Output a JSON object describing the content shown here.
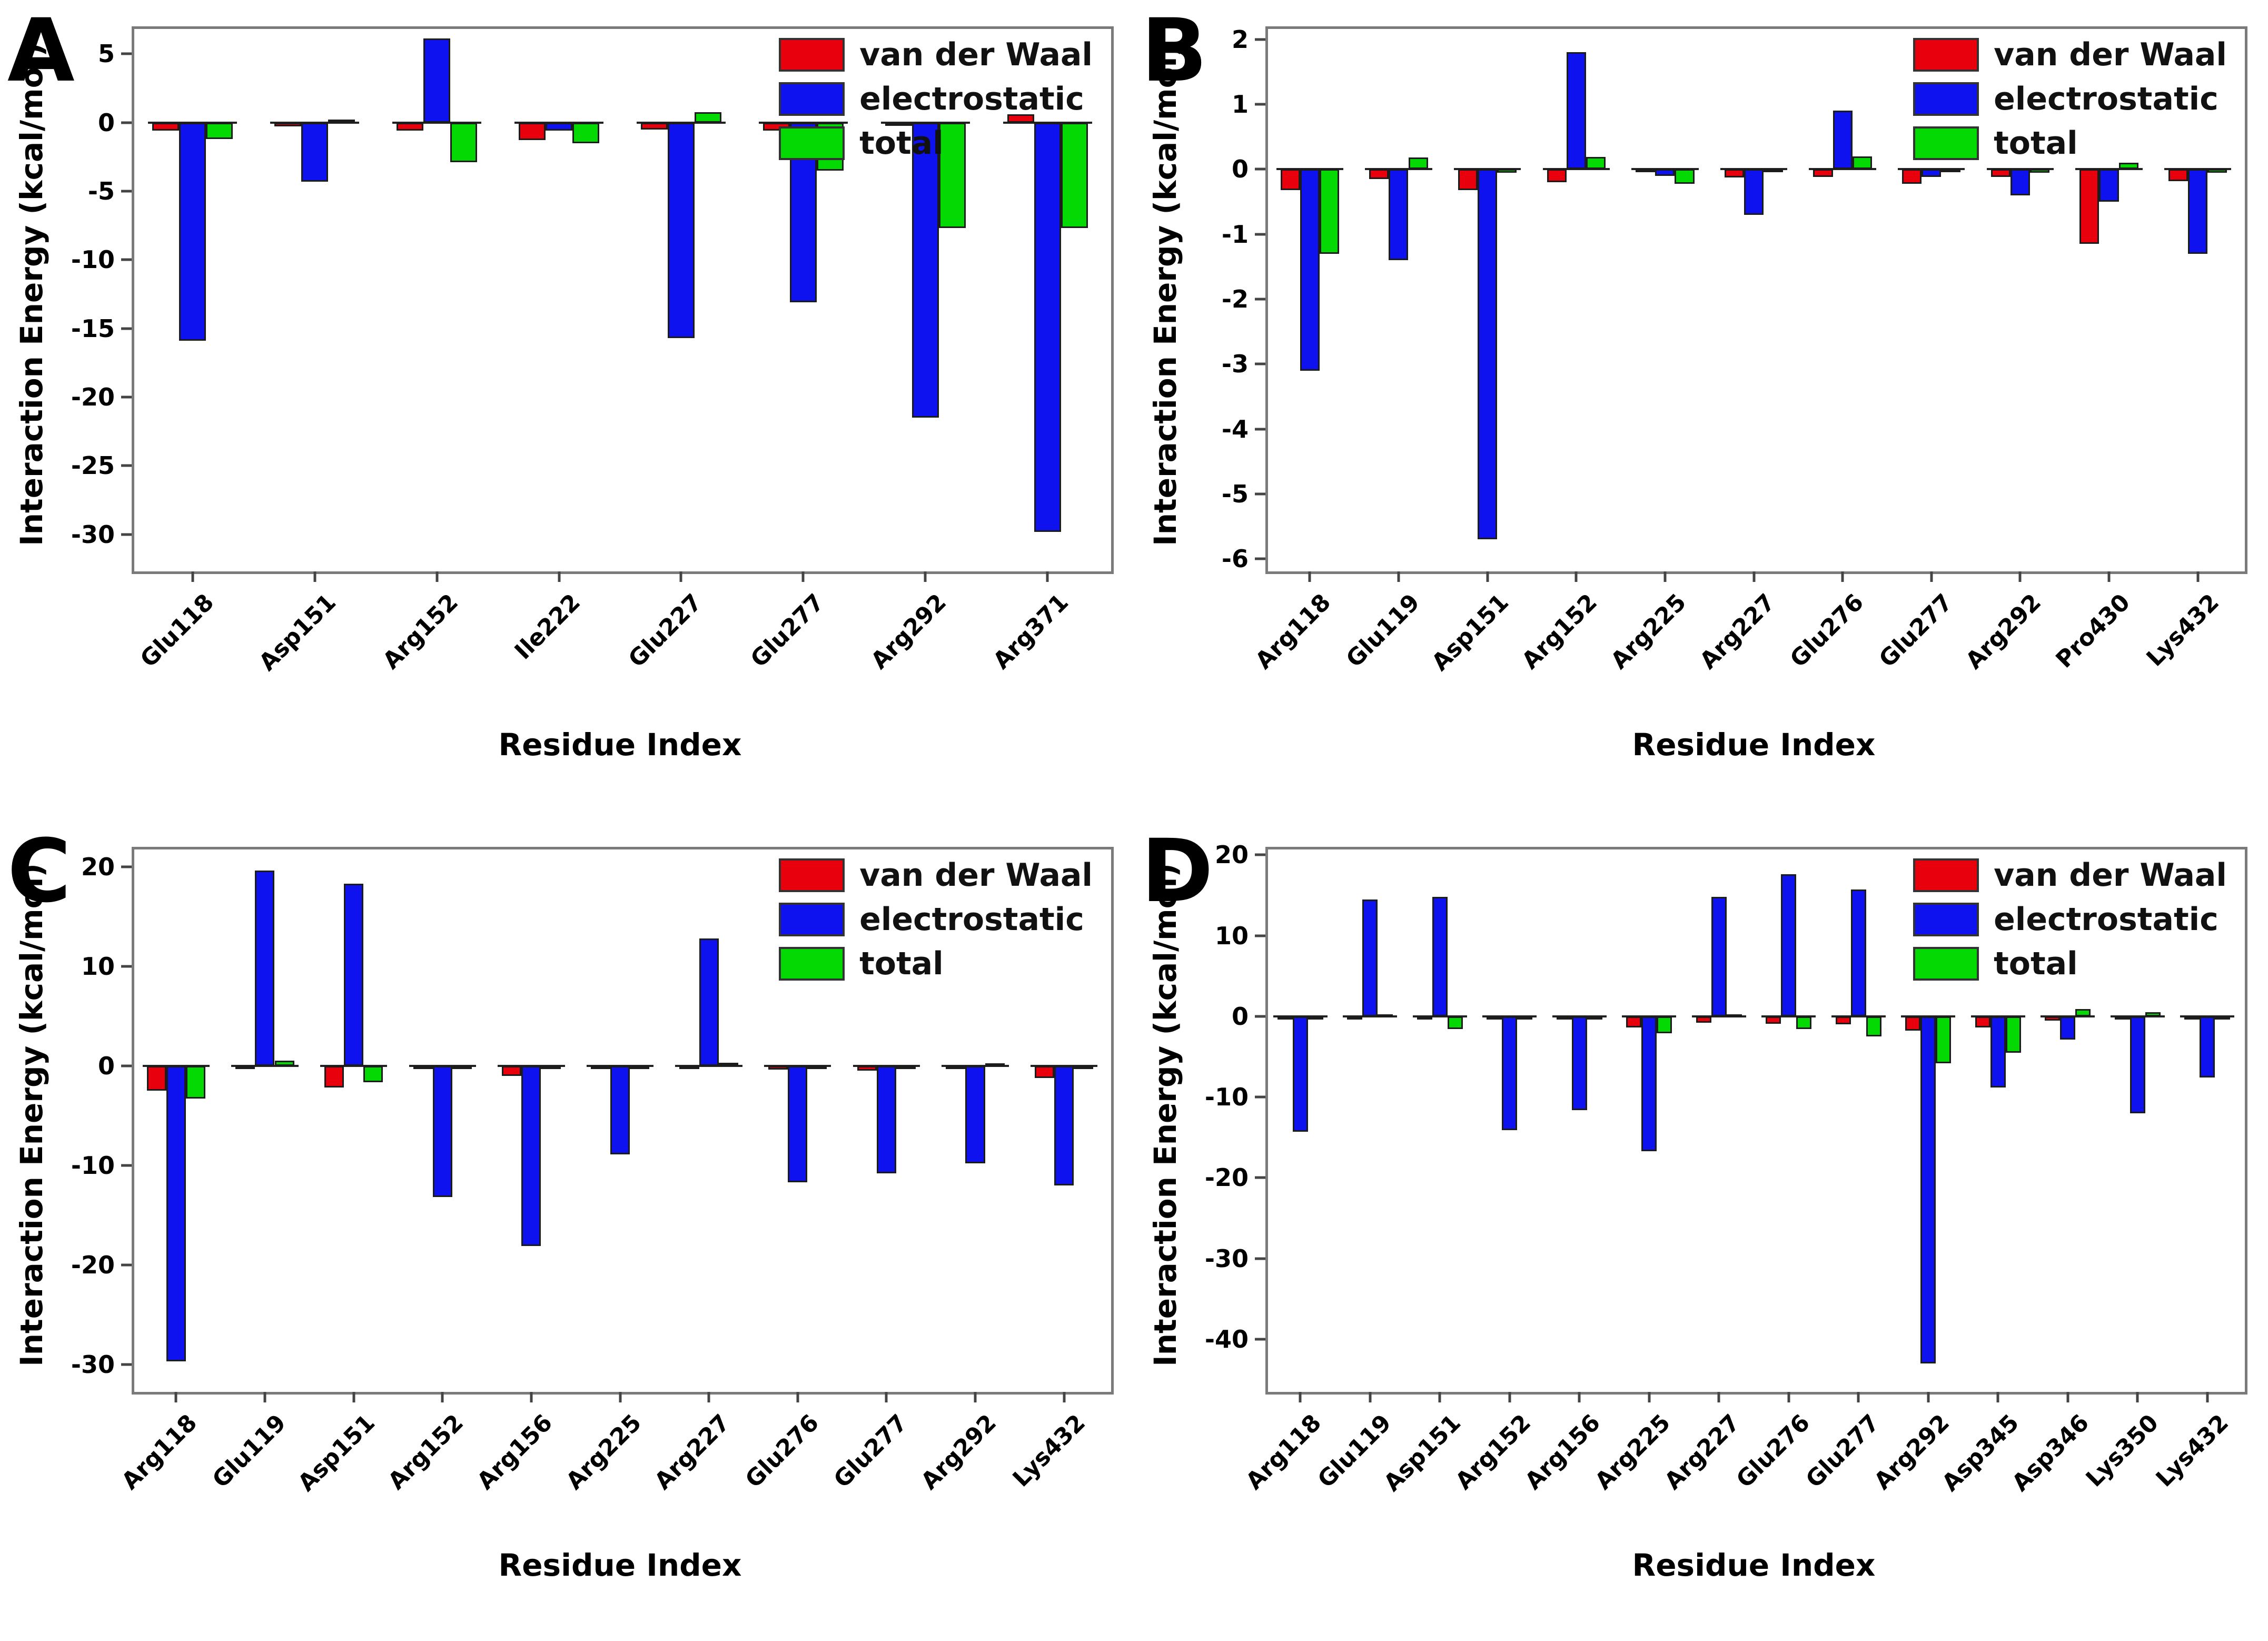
{
  "figure": {
    "ylabel": "Interaction Energy (kcal/mol)",
    "xlabel": "Residue Index",
    "series_colors": {
      "van_der_waal": "#e8000d",
      "electrostatic": "#0d12ee",
      "total": "#04d904"
    },
    "legend_labels": [
      "van der Waal",
      "electrostatic",
      "total"
    ]
  },
  "chart_data": [
    {
      "type": "bar",
      "panel": "A",
      "title": "",
      "xlabel": "Residue Index",
      "ylabel": "Interaction Energy (kcal/mol)",
      "legend_position": "upper right",
      "grid": false,
      "ylim": [
        -32.5,
        7.0
      ],
      "yticks": [
        "5",
        "0",
        "-5",
        "-10",
        "-15",
        "-20",
        "-25",
        "-30"
      ],
      "ytick_values": [
        5,
        0,
        -5,
        -10,
        -15,
        -20,
        -25,
        -30
      ],
      "categories": [
        "Glu118",
        "Asp151",
        "Arg152",
        "Ile222",
        "Glu227",
        "Glu277",
        "Arg292",
        "Arg371"
      ],
      "series": [
        {
          "name": "van der Waal",
          "color": "#e8000d",
          "values": [
            -0.6,
            -0.3,
            -0.6,
            -1.3,
            -0.5,
            -0.6,
            -0.2,
            0.6
          ]
        },
        {
          "name": "electrostatic",
          "color": "#0d12ee",
          "values": [
            -15.9,
            -4.3,
            6.1,
            -0.6,
            -15.7,
            -13.1,
            -21.5,
            -29.8
          ]
        },
        {
          "name": "total",
          "color": "#04d904",
          "values": [
            -1.2,
            0.2,
            -2.9,
            -1.5,
            0.75,
            -3.5,
            -7.7,
            -7.7
          ]
        }
      ]
    },
    {
      "type": "bar",
      "panel": "B",
      "title": "",
      "xlabel": "Residue Index",
      "ylabel": "Interaction Energy (kcal/mol)",
      "legend_position": "upper right",
      "grid": false,
      "ylim": [
        -6.15,
        2.2
      ],
      "yticks": [
        "2",
        "1",
        "0",
        "-1",
        "-2",
        "-3",
        "-4",
        "-5",
        "-6"
      ],
      "ytick_values": [
        2,
        1,
        0,
        -1,
        -2,
        -3,
        -4,
        -5,
        -6
      ],
      "categories": [
        "Arg118",
        "Glu119",
        "Asp151",
        "Arg152",
        "Arg225",
        "Arg227",
        "Glu276",
        "Glu277",
        "Arg292",
        "Pro430",
        "Lys432"
      ],
      "series": [
        {
          "name": "van der Waal",
          "color": "#e8000d",
          "values": [
            -0.32,
            -0.15,
            -0.32,
            -0.2,
            -0.04,
            -0.13,
            -0.12,
            -0.22,
            -0.12,
            -1.15,
            -0.18
          ]
        },
        {
          "name": "electrostatic",
          "color": "#0d12ee",
          "values": [
            -3.1,
            -1.4,
            -5.7,
            1.8,
            -0.1,
            -0.7,
            0.9,
            -0.12,
            -0.4,
            -0.5,
            -1.3
          ]
        },
        {
          "name": "total",
          "color": "#04d904",
          "values": [
            -1.3,
            0.18,
            -0.05,
            0.19,
            -0.22,
            -0.04,
            0.2,
            -0.04,
            -0.05,
            0.1,
            -0.05
          ]
        }
      ]
    },
    {
      "type": "bar",
      "panel": "C",
      "title": "",
      "xlabel": "Residue Index",
      "ylabel": "Interaction Energy (kcal/mol)",
      "legend_position": "upper right",
      "grid": false,
      "ylim": [
        -32.5,
        22.0
      ],
      "yticks": [
        "20",
        "10",
        "0",
        "-10",
        "-20",
        "-30"
      ],
      "ytick_values": [
        20,
        10,
        0,
        -10,
        -20,
        -30
      ],
      "categories": [
        "Arg118",
        "Glu119",
        "Asp151",
        "Arg152",
        "Arg156",
        "Arg225",
        "Arg227",
        "Glu276",
        "Glu277",
        "Arg292",
        "Lys432"
      ],
      "series": [
        {
          "name": "van der Waal",
          "color": "#e8000d",
          "values": [
            -2.5,
            -0.25,
            -2.2,
            -0.3,
            -1.0,
            -0.2,
            -0.3,
            -0.4,
            -0.5,
            -0.3,
            -1.25
          ]
        },
        {
          "name": "electrostatic",
          "color": "#0d12ee",
          "values": [
            -29.7,
            19.6,
            18.3,
            -13.2,
            -18.1,
            -8.9,
            12.8,
            -11.7,
            -10.8,
            -9.8,
            -12.0
          ]
        },
        {
          "name": "total",
          "color": "#04d904",
          "values": [
            -3.3,
            0.5,
            -1.65,
            -0.1,
            -0.1,
            -0.08,
            0.3,
            -0.1,
            -0.1,
            0.25,
            -0.08
          ]
        }
      ]
    },
    {
      "type": "bar",
      "panel": "D",
      "title": "",
      "xlabel": "Residue Index",
      "ylabel": "Interaction Energy (kcal/mol)",
      "legend_position": "upper right",
      "grid": false,
      "ylim": [
        -46.2,
        21.0
      ],
      "yticks": [
        "20",
        "10",
        "0",
        "-10",
        "-20",
        "-30",
        "-40"
      ],
      "ytick_values": [
        20,
        10,
        0,
        -10,
        -20,
        -30,
        -40
      ],
      "categories": [
        "Arg118",
        "Glu119",
        "Asp151",
        "Arg152",
        "Arg156",
        "Arg225",
        "Arg227",
        "Glu276",
        "Glu277",
        "Arg292",
        "Asp345",
        "Asp346",
        "Lys350",
        "Lys432"
      ],
      "series": [
        {
          "name": "van der Waal",
          "color": "#e8000d",
          "values": [
            -0.15,
            -0.15,
            -0.4,
            -0.15,
            -0.3,
            -1.4,
            -0.8,
            -0.9,
            -1.0,
            -1.8,
            -1.4,
            -0.5,
            -0.4,
            -0.4
          ]
        },
        {
          "name": "electrostatic",
          "color": "#0d12ee",
          "values": [
            -14.3,
            14.5,
            14.8,
            -14.1,
            -11.6,
            -16.7,
            14.8,
            17.6,
            15.7,
            -43.0,
            -8.8,
            -2.9,
            -12.0,
            -7.6
          ]
        },
        {
          "name": "total",
          "color": "#04d904",
          "values": [
            -0.1,
            0.1,
            -1.6,
            -0.1,
            -0.1,
            -2.1,
            0.25,
            -1.6,
            -2.5,
            -5.8,
            -4.5,
            0.9,
            0.5,
            -0.1
          ]
        }
      ]
    }
  ]
}
